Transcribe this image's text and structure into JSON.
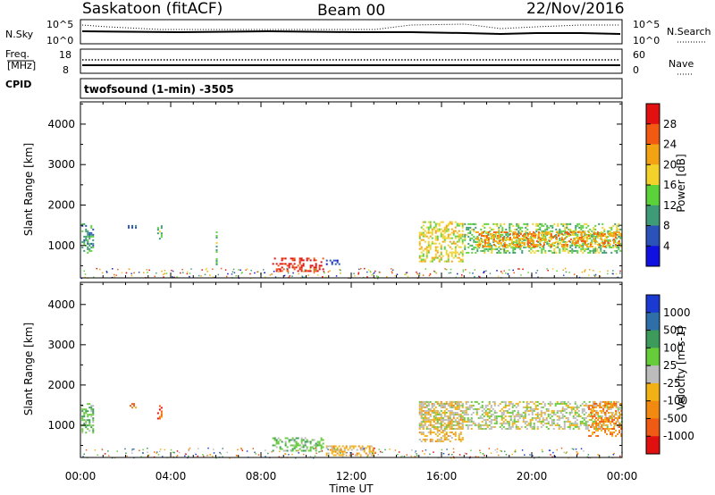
{
  "header": {
    "station": "Saskatoon (fitACF)",
    "beam": "Beam 00",
    "date": "22/Nov/2016"
  },
  "strip_labels": {
    "nsky": "N.Sky",
    "nsearch": "N.Search",
    "freq_top": "Freq.",
    "freq_unit": "[MHz]",
    "cpid": "CPID",
    "nave": "Nave",
    "nsky_ticks": [
      "10^5",
      "10^0"
    ],
    "nsearch_ticks": [
      "10^5",
      "10^0"
    ],
    "freq_ticks": [
      "18",
      "8"
    ],
    "nave_ticks": [
      "60",
      "0"
    ],
    "cpid_text": "twofsound (1-min) -3505"
  },
  "chart_data": [
    {
      "type": "heatmap",
      "quantity": "Power",
      "ylabel": "Slant Range [km]",
      "ylim": [
        200,
        4550
      ],
      "yticks": [
        1000,
        2000,
        3000,
        4000
      ],
      "xlim": [
        0,
        24
      ],
      "colorbar": {
        "label": "Power [dB]",
        "ticks": [
          "4",
          "8",
          "12",
          "16",
          "20",
          "24",
          "28"
        ],
        "colors": [
          "#1010e0",
          "#2a52b8",
          "#3f9a78",
          "#5cd23a",
          "#f2d22a",
          "#f2a212",
          "#f25a12",
          "#e21010"
        ]
      },
      "regions": [
        {
          "t0": 0.05,
          "t1": 0.6,
          "r0": 800,
          "r1": 1550,
          "level": 2
        },
        {
          "t0": 2.1,
          "t1": 2.5,
          "r0": 1400,
          "r1": 1550,
          "level": 1
        },
        {
          "t0": 3.4,
          "t1": 3.6,
          "r0": 1150,
          "r1": 1500,
          "level": 3
        },
        {
          "t0": 6.0,
          "t1": 6.1,
          "r0": 500,
          "r1": 1350,
          "level": 3
        },
        {
          "t0": 8.5,
          "t1": 10.8,
          "r0": 350,
          "r1": 700,
          "level": 7
        },
        {
          "t0": 10.8,
          "t1": 11.5,
          "r0": 500,
          "r1": 650,
          "level": 1
        },
        {
          "t0": 15.0,
          "t1": 17.0,
          "r0": 600,
          "r1": 1600,
          "level": 4
        },
        {
          "t0": 17.0,
          "t1": 24.0,
          "r0": 800,
          "r1": 1550,
          "level": 3
        },
        {
          "t0": 17.5,
          "t1": 24.0,
          "r0": 950,
          "r1": 1350,
          "level": 5
        }
      ]
    },
    {
      "type": "heatmap",
      "quantity": "Velocity",
      "ylabel": "Slant Range [km]",
      "ylim": [
        200,
        4550
      ],
      "yticks": [
        1000,
        2000,
        3000,
        4000
      ],
      "xlim": [
        0,
        24
      ],
      "xticks": [
        "00:00",
        "04:00",
        "08:00",
        "12:00",
        "16:00",
        "20:00",
        "00:00"
      ],
      "xlabel": "Time UT",
      "colorbar": {
        "label": "Velocity [m s-1]",
        "ticks": [
          "1000",
          "500",
          "100",
          "25",
          "-25",
          "-100",
          "-500",
          "-1000"
        ],
        "colors": [
          "#1a3ad2",
          "#2e6fa8",
          "#3c9a5a",
          "#66cc3a",
          "#bcbcbc",
          "#f2b216",
          "#f28a12",
          "#ef5a14",
          "#e01010"
        ]
      },
      "regions": [
        {
          "t0": 0.05,
          "t1": 0.6,
          "r0": 800,
          "r1": 1550,
          "level": 3
        },
        {
          "t0": 2.1,
          "t1": 2.5,
          "r0": 1400,
          "r1": 1550,
          "level": 6
        },
        {
          "t0": 3.4,
          "t1": 3.6,
          "r0": 1150,
          "r1": 1500,
          "level": 7
        },
        {
          "t0": 8.5,
          "t1": 10.8,
          "r0": 350,
          "r1": 700,
          "level": 3
        },
        {
          "t0": 10.8,
          "t1": 13.0,
          "r0": 250,
          "r1": 500,
          "level": 5
        },
        {
          "t0": 15.0,
          "t1": 17.0,
          "r0": 600,
          "r1": 1600,
          "level": 5
        },
        {
          "t0": 15.0,
          "t1": 24.0,
          "r0": 900,
          "r1": 1600,
          "level": 4
        },
        {
          "t0": 22.5,
          "t1": 24.0,
          "r0": 700,
          "r1": 1600,
          "level": 6
        }
      ]
    }
  ]
}
